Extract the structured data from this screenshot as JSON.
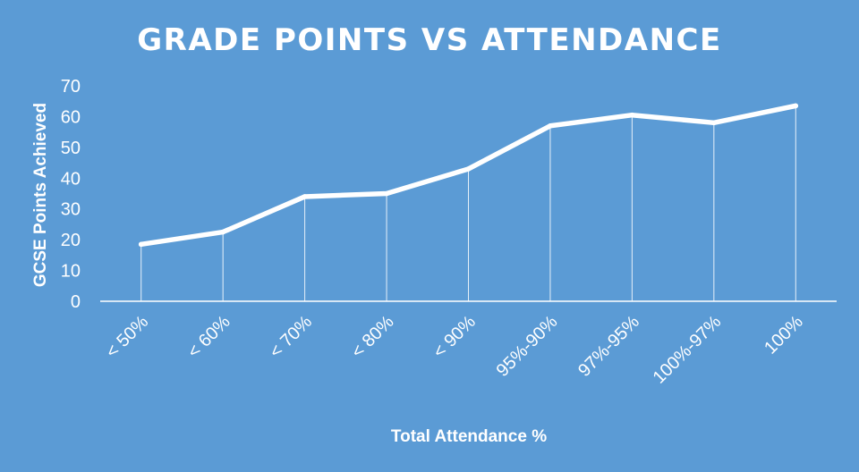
{
  "chart_data": {
    "type": "line",
    "title": "GRADE POINTS VS ATTENDANCE",
    "xlabel": "Total Attendance %",
    "ylabel": "GCSE Points Achieved",
    "categories": [
      "< 50%",
      "< 60%",
      "< 70%",
      "< 80%",
      "< 90%",
      "95%-90%",
      "97%-95%",
      "100%-97%",
      "100%"
    ],
    "series": [
      {
        "values": [
          18.5,
          22.5,
          34,
          35,
          43,
          57,
          60.5,
          58,
          63.5
        ]
      }
    ],
    "ylim": [
      0,
      70
    ],
    "yticks": [
      "0",
      "10",
      "20",
      "30",
      "40",
      "50",
      "60",
      "70"
    ],
    "drop_lines": true,
    "grid": false,
    "legend": "none",
    "colors": {
      "background": "#5b9bd5",
      "line": "#ffffff",
      "text": "#ffffff"
    }
  }
}
